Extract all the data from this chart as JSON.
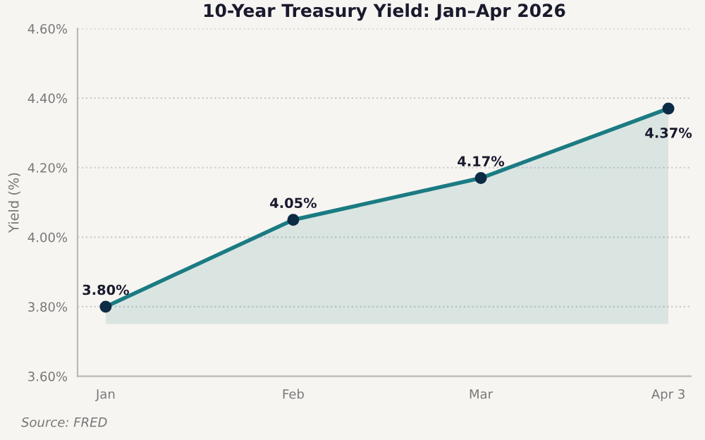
{
  "chart_data": {
    "type": "line",
    "title": "10-Year Treasury Yield: Jan–Apr 2026",
    "ylabel": "Yield (%)",
    "categories": [
      "Jan",
      "Feb",
      "Mar",
      "Apr 3"
    ],
    "series": [
      {
        "color": "#1b7b83",
        "values": [
          3.8,
          4.05,
          4.17,
          4.37
        ],
        "lower": [
          3.75,
          3.75,
          3.75,
          3.75
        ],
        "upper": [
          3.8,
          4.05,
          4.17,
          4.37
        ],
        "value_labels": [
          "3.80%",
          "4.05%",
          "4.17%",
          "4.37%"
        ]
      }
    ],
    "marker": "circle",
    "line_style": "solid",
    "grid": "y",
    "legend": false,
    "ylim": [
      3.6,
      4.6
    ],
    "yticks": [
      {
        "value": 3.6,
        "label": "3.60%"
      },
      {
        "value": 3.8,
        "label": "3.80%"
      },
      {
        "value": 4.0,
        "label": "4.00%"
      },
      {
        "value": 4.2,
        "label": "4.20%"
      },
      {
        "value": 4.4,
        "label": "4.40%"
      },
      {
        "value": 4.6,
        "label": "4.60%"
      }
    ],
    "annotations": [
      "Source: FRED"
    ]
  }
}
